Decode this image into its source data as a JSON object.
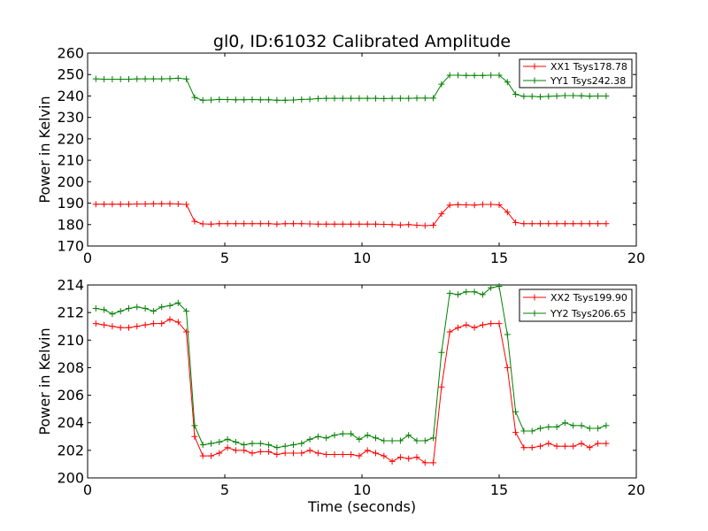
{
  "chart_data": [
    {
      "type": "line",
      "title": "gl0, ID:61032 Calibrated Amplitude",
      "xlabel": "",
      "ylabel": "Power in Kelvin",
      "xlim": [
        0,
        20
      ],
      "ylim": [
        170,
        260
      ],
      "xticks": [
        0,
        5,
        10,
        15,
        20
      ],
      "yticks": [
        170,
        180,
        190,
        200,
        210,
        220,
        230,
        240,
        250,
        260
      ],
      "grid": false,
      "legend_position": "top-right",
      "marker": "plus",
      "x": [
        0.3,
        0.6,
        0.9,
        1.2,
        1.5,
        1.8,
        2.1,
        2.4,
        2.7,
        3.0,
        3.3,
        3.6,
        3.9,
        4.2,
        4.5,
        4.8,
        5.1,
        5.4,
        5.7,
        6.0,
        6.3,
        6.6,
        6.9,
        7.2,
        7.5,
        7.8,
        8.1,
        8.4,
        8.7,
        9.0,
        9.3,
        9.6,
        9.9,
        10.2,
        10.5,
        10.8,
        11.1,
        11.4,
        11.7,
        12.0,
        12.3,
        12.6,
        12.9,
        13.2,
        13.5,
        13.8,
        14.1,
        14.4,
        14.7,
        15.0,
        15.3,
        15.6,
        15.9,
        16.2,
        16.5,
        16.8,
        17.1,
        17.4,
        17.7,
        18.0,
        18.3,
        18.6,
        18.9
      ],
      "series": [
        {
          "name": "XX1 Tsys178.78",
          "color": "#ff0000",
          "values": [
            189.5,
            189.5,
            189.5,
            189.5,
            189.5,
            189.6,
            189.6,
            189.7,
            189.7,
            189.7,
            189.6,
            189.4,
            181.5,
            180.3,
            180.2,
            180.4,
            180.4,
            180.4,
            180.4,
            180.4,
            180.4,
            180.4,
            180.2,
            180.4,
            180.4,
            180.4,
            180.3,
            180.2,
            180.2,
            180.2,
            180.2,
            180.2,
            180.2,
            180.2,
            180.2,
            180.1,
            180.0,
            179.8,
            180.0,
            179.7,
            179.5,
            179.7,
            185.0,
            189.1,
            189.3,
            189.2,
            189.1,
            189.4,
            189.4,
            189.2,
            185.8,
            181.0,
            180.4,
            180.4,
            180.4,
            180.4,
            180.4,
            180.4,
            180.4,
            180.4,
            180.4,
            180.4,
            180.4
          ]
        },
        {
          "name": "YY1 Tsys242.38",
          "color": "#008000",
          "values": [
            248.0,
            247.8,
            247.8,
            247.8,
            247.8,
            248.0,
            248.0,
            248.0,
            248.0,
            248.1,
            248.3,
            247.9,
            239.3,
            238.0,
            238.1,
            238.4,
            238.3,
            238.2,
            238.2,
            238.3,
            238.2,
            238.2,
            238.0,
            238.0,
            238.1,
            238.4,
            238.5,
            238.8,
            238.9,
            238.9,
            238.9,
            238.9,
            238.9,
            238.9,
            238.9,
            238.8,
            238.9,
            238.9,
            238.9,
            239.0,
            239.0,
            239.0,
            245.5,
            249.7,
            249.7,
            249.6,
            249.6,
            249.6,
            249.7,
            249.7,
            246.5,
            240.8,
            239.8,
            239.8,
            239.6,
            239.8,
            240.0,
            240.2,
            240.2,
            240.1,
            239.9,
            240.0,
            240.0
          ]
        }
      ]
    },
    {
      "type": "line",
      "title": "",
      "xlabel": "Time (seconds)",
      "ylabel": "Power in Kelvin",
      "xlim": [
        0,
        20
      ],
      "ylim": [
        200,
        214
      ],
      "xticks": [
        0,
        5,
        10,
        15,
        20
      ],
      "yticks": [
        200,
        202,
        204,
        206,
        208,
        210,
        212,
        214
      ],
      "grid": false,
      "legend_position": "top-right",
      "marker": "plus",
      "x": [
        0.3,
        0.6,
        0.9,
        1.2,
        1.5,
        1.8,
        2.1,
        2.4,
        2.7,
        3.0,
        3.3,
        3.6,
        3.9,
        4.2,
        4.5,
        4.8,
        5.1,
        5.4,
        5.7,
        6.0,
        6.3,
        6.6,
        6.9,
        7.2,
        7.5,
        7.8,
        8.1,
        8.4,
        8.7,
        9.0,
        9.3,
        9.6,
        9.9,
        10.2,
        10.5,
        10.8,
        11.1,
        11.4,
        11.7,
        12.0,
        12.3,
        12.6,
        12.9,
        13.2,
        13.5,
        13.8,
        14.1,
        14.4,
        14.7,
        15.0,
        15.3,
        15.6,
        15.9,
        16.2,
        16.5,
        16.8,
        17.1,
        17.4,
        17.7,
        18.0,
        18.3,
        18.6,
        18.9
      ],
      "series": [
        {
          "name": "XX2 Tsys199.90",
          "color": "#ff0000",
          "values": [
            211.2,
            211.1,
            211.0,
            210.9,
            210.9,
            211.0,
            211.1,
            211.2,
            211.2,
            211.5,
            211.3,
            210.6,
            203.0,
            201.6,
            201.6,
            201.8,
            202.2,
            202.0,
            202.0,
            201.8,
            201.9,
            201.9,
            201.7,
            201.8,
            201.8,
            201.8,
            202.0,
            201.8,
            201.7,
            201.7,
            201.7,
            201.7,
            201.6,
            202.0,
            201.8,
            201.6,
            201.2,
            201.5,
            201.4,
            201.5,
            201.1,
            201.1,
            206.6,
            210.6,
            210.9,
            211.1,
            210.9,
            211.1,
            211.2,
            211.2,
            208.0,
            203.3,
            202.2,
            202.2,
            202.3,
            202.5,
            202.3,
            202.3,
            202.3,
            202.5,
            202.2,
            202.5,
            202.5
          ]
        },
        {
          "name": "YY2 Tsys206.65",
          "color": "#008000",
          "values": [
            212.3,
            212.2,
            211.9,
            212.1,
            212.3,
            212.4,
            212.3,
            212.1,
            212.4,
            212.5,
            212.7,
            212.1,
            203.8,
            202.4,
            202.5,
            202.6,
            202.8,
            202.6,
            202.4,
            202.5,
            202.5,
            202.4,
            202.2,
            202.3,
            202.4,
            202.5,
            202.8,
            203.0,
            202.9,
            203.1,
            203.2,
            203.2,
            202.8,
            203.1,
            202.9,
            202.7,
            202.7,
            202.7,
            203.1,
            202.7,
            202.7,
            202.9,
            209.1,
            213.4,
            213.3,
            213.5,
            213.5,
            213.3,
            213.8,
            213.9,
            210.4,
            204.8,
            203.4,
            203.4,
            203.6,
            203.7,
            203.7,
            204.0,
            203.8,
            203.8,
            203.6,
            203.6,
            203.8
          ]
        }
      ]
    }
  ]
}
